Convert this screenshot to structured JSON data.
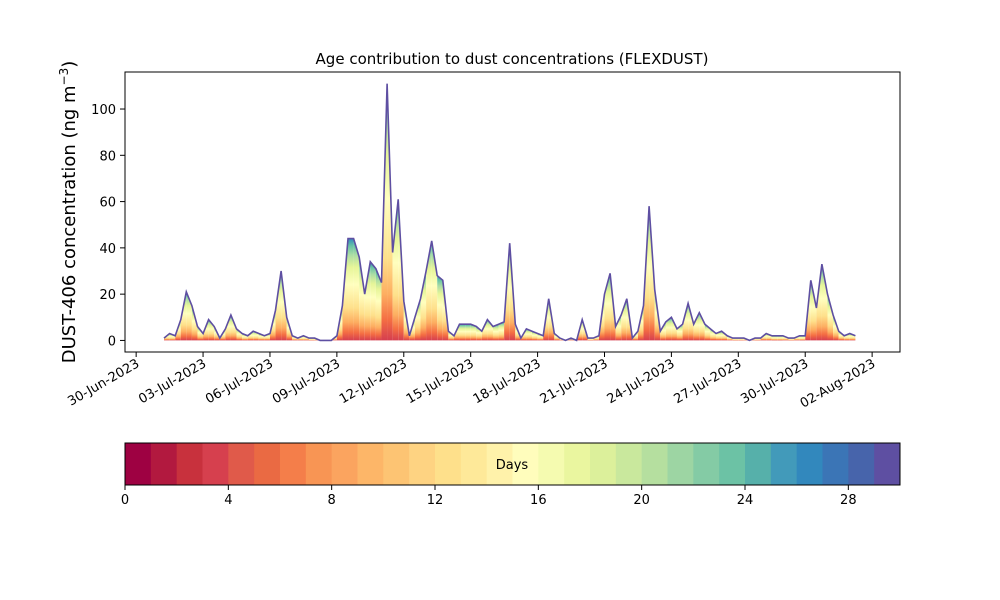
{
  "chart_data": [
    {
      "type": "area",
      "title": "Age contribution to dust concentrations (FLEXDUST)",
      "ylabel": "DUST-406 concentration (ng m",
      "ylabel_superscript": "−3",
      "ylabel_close": ")",
      "xlabel": "",
      "ylim": [
        -5,
        116
      ],
      "yticks": [
        0,
        20,
        40,
        60,
        80,
        100
      ],
      "xlim": [
        "2023-06-29T12:00",
        "2023-08-03T06:00"
      ],
      "xticks": [
        "2023-06-30",
        "2023-07-03",
        "2023-07-06",
        "2023-07-09",
        "2023-07-12",
        "2023-07-15",
        "2023-07-18",
        "2023-07-21",
        "2023-07-24",
        "2023-07-27",
        "2023-07-30",
        "2023-08-02"
      ],
      "xtick_labels": [
        "30-Jun-2023",
        "03-Jul-2023",
        "06-Jul-2023",
        "09-Jul-2023",
        "12-Jul-2023",
        "15-Jul-2023",
        "18-Jul-2023",
        "21-Jul-2023",
        "24-Jul-2023",
        "27-Jul-2023",
        "30-Jul-2023",
        "02-Aug-2023"
      ],
      "x": [
        "2023-07-01T06:00",
        "2023-07-01T12:00",
        "2023-07-01T18:00",
        "2023-07-02T00:00",
        "2023-07-02T06:00",
        "2023-07-02T12:00",
        "2023-07-02T18:00",
        "2023-07-03T00:00",
        "2023-07-03T06:00",
        "2023-07-03T12:00",
        "2023-07-03T18:00",
        "2023-07-04T00:00",
        "2023-07-04T06:00",
        "2023-07-04T12:00",
        "2023-07-04T18:00",
        "2023-07-05T00:00",
        "2023-07-05T06:00",
        "2023-07-05T12:00",
        "2023-07-05T18:00",
        "2023-07-06T00:00",
        "2023-07-06T06:00",
        "2023-07-06T12:00",
        "2023-07-06T18:00",
        "2023-07-07T00:00",
        "2023-07-07T06:00",
        "2023-07-07T12:00",
        "2023-07-07T18:00",
        "2023-07-08T00:00",
        "2023-07-08T06:00",
        "2023-07-08T12:00",
        "2023-07-08T18:00",
        "2023-07-09T00:00",
        "2023-07-09T06:00",
        "2023-07-09T12:00",
        "2023-07-09T18:00",
        "2023-07-10T00:00",
        "2023-07-10T06:00",
        "2023-07-10T12:00",
        "2023-07-10T18:00",
        "2023-07-11T00:00",
        "2023-07-11T06:00",
        "2023-07-11T12:00",
        "2023-07-11T18:00",
        "2023-07-12T00:00",
        "2023-07-12T06:00",
        "2023-07-12T12:00",
        "2023-07-12T18:00",
        "2023-07-13T00:00",
        "2023-07-13T06:00",
        "2023-07-13T12:00",
        "2023-07-13T18:00",
        "2023-07-14T00:00",
        "2023-07-14T06:00",
        "2023-07-14T12:00",
        "2023-07-14T18:00",
        "2023-07-15T00:00",
        "2023-07-15T06:00",
        "2023-07-15T12:00",
        "2023-07-15T18:00",
        "2023-07-16T00:00",
        "2023-07-16T06:00",
        "2023-07-16T12:00",
        "2023-07-16T18:00",
        "2023-07-17T00:00",
        "2023-07-17T06:00",
        "2023-07-17T12:00",
        "2023-07-17T18:00",
        "2023-07-18T00:00",
        "2023-07-18T06:00",
        "2023-07-18T12:00",
        "2023-07-18T18:00",
        "2023-07-19T00:00",
        "2023-07-19T06:00",
        "2023-07-19T12:00",
        "2023-07-19T18:00",
        "2023-07-20T00:00",
        "2023-07-20T06:00",
        "2023-07-20T12:00",
        "2023-07-20T18:00",
        "2023-07-21T00:00",
        "2023-07-21T06:00",
        "2023-07-21T12:00",
        "2023-07-21T18:00",
        "2023-07-22T00:00",
        "2023-07-22T06:00",
        "2023-07-22T12:00",
        "2023-07-22T18:00",
        "2023-07-23T00:00",
        "2023-07-23T06:00",
        "2023-07-23T12:00",
        "2023-07-23T18:00",
        "2023-07-24T00:00",
        "2023-07-24T06:00",
        "2023-07-24T12:00",
        "2023-07-24T18:00",
        "2023-07-25T00:00",
        "2023-07-25T06:00",
        "2023-07-25T12:00",
        "2023-07-25T18:00",
        "2023-07-26T00:00",
        "2023-07-26T06:00",
        "2023-07-26T12:00",
        "2023-07-26T18:00",
        "2023-07-27T00:00",
        "2023-07-27T06:00",
        "2023-07-27T12:00",
        "2023-07-27T18:00",
        "2023-07-28T00:00",
        "2023-07-28T06:00",
        "2023-07-28T12:00",
        "2023-07-28T18:00",
        "2023-07-29T00:00",
        "2023-07-29T06:00",
        "2023-07-29T12:00",
        "2023-07-29T18:00",
        "2023-07-30T00:00",
        "2023-07-30T06:00",
        "2023-07-30T12:00",
        "2023-07-30T18:00",
        "2023-07-31T00:00",
        "2023-07-31T06:00",
        "2023-07-31T12:00",
        "2023-07-31T18:00",
        "2023-08-01T00:00",
        "2023-08-01T06:00"
      ],
      "total": [
        1,
        3,
        2,
        9,
        21,
        15,
        6,
        3,
        9,
        6,
        1,
        5,
        11,
        5,
        3,
        2,
        4,
        3,
        2,
        3,
        13,
        30,
        10,
        2,
        1,
        2,
        1,
        1,
        0,
        0,
        0,
        2,
        15,
        44,
        44,
        36,
        20,
        34,
        31,
        25,
        111,
        38,
        61,
        17,
        2,
        10,
        18,
        30,
        43,
        28,
        26,
        4,
        2,
        7,
        7,
        7,
        6,
        4,
        9,
        6,
        7,
        8,
        42,
        7,
        1,
        5,
        4,
        3,
        2,
        18,
        3,
        1,
        0,
        1,
        0,
        9,
        1,
        1,
        2,
        20,
        29,
        6,
        11,
        18,
        1,
        4,
        15,
        58,
        22,
        4,
        8,
        10,
        5,
        7,
        16,
        7,
        12,
        7,
        5,
        3,
        4,
        2,
        1,
        1,
        1,
        0,
        1,
        1,
        3,
        2,
        2,
        2,
        1,
        1,
        2,
        2,
        26,
        14,
        33,
        20,
        11,
        4,
        2,
        3,
        2,
        7,
        3,
        2,
        1,
        2
      ],
      "color_by_age": {
        "colormap": "Spectral",
        "bins_days": 30,
        "contribution": "share of concentration by particle age (days)"
      },
      "colorbar": {
        "label": "Days",
        "min": 0,
        "max": 30,
        "bins": 30,
        "ticks": [
          0,
          4,
          8,
          12,
          16,
          20,
          24,
          28
        ],
        "colors": [
          "#9e0142",
          "#b2193f",
          "#c8313d",
          "#d6404e",
          "#e05a4a",
          "#ea6a43",
          "#f47e4a",
          "#f89554",
          "#fba45f",
          "#fdb668",
          "#fdc473",
          "#fed382",
          "#fee08b",
          "#fee999",
          "#fff2aa",
          "#fffdbc",
          "#f5fbb0",
          "#eaf69f",
          "#dcf09b",
          "#c9e89d",
          "#b5df9f",
          "#9dd5a3",
          "#84cba5",
          "#6cc2a5",
          "#56b0aa",
          "#429aba",
          "#3288bd",
          "#3b75b6",
          "#4764ab",
          "#5e4fa2"
        ]
      }
    }
  ]
}
